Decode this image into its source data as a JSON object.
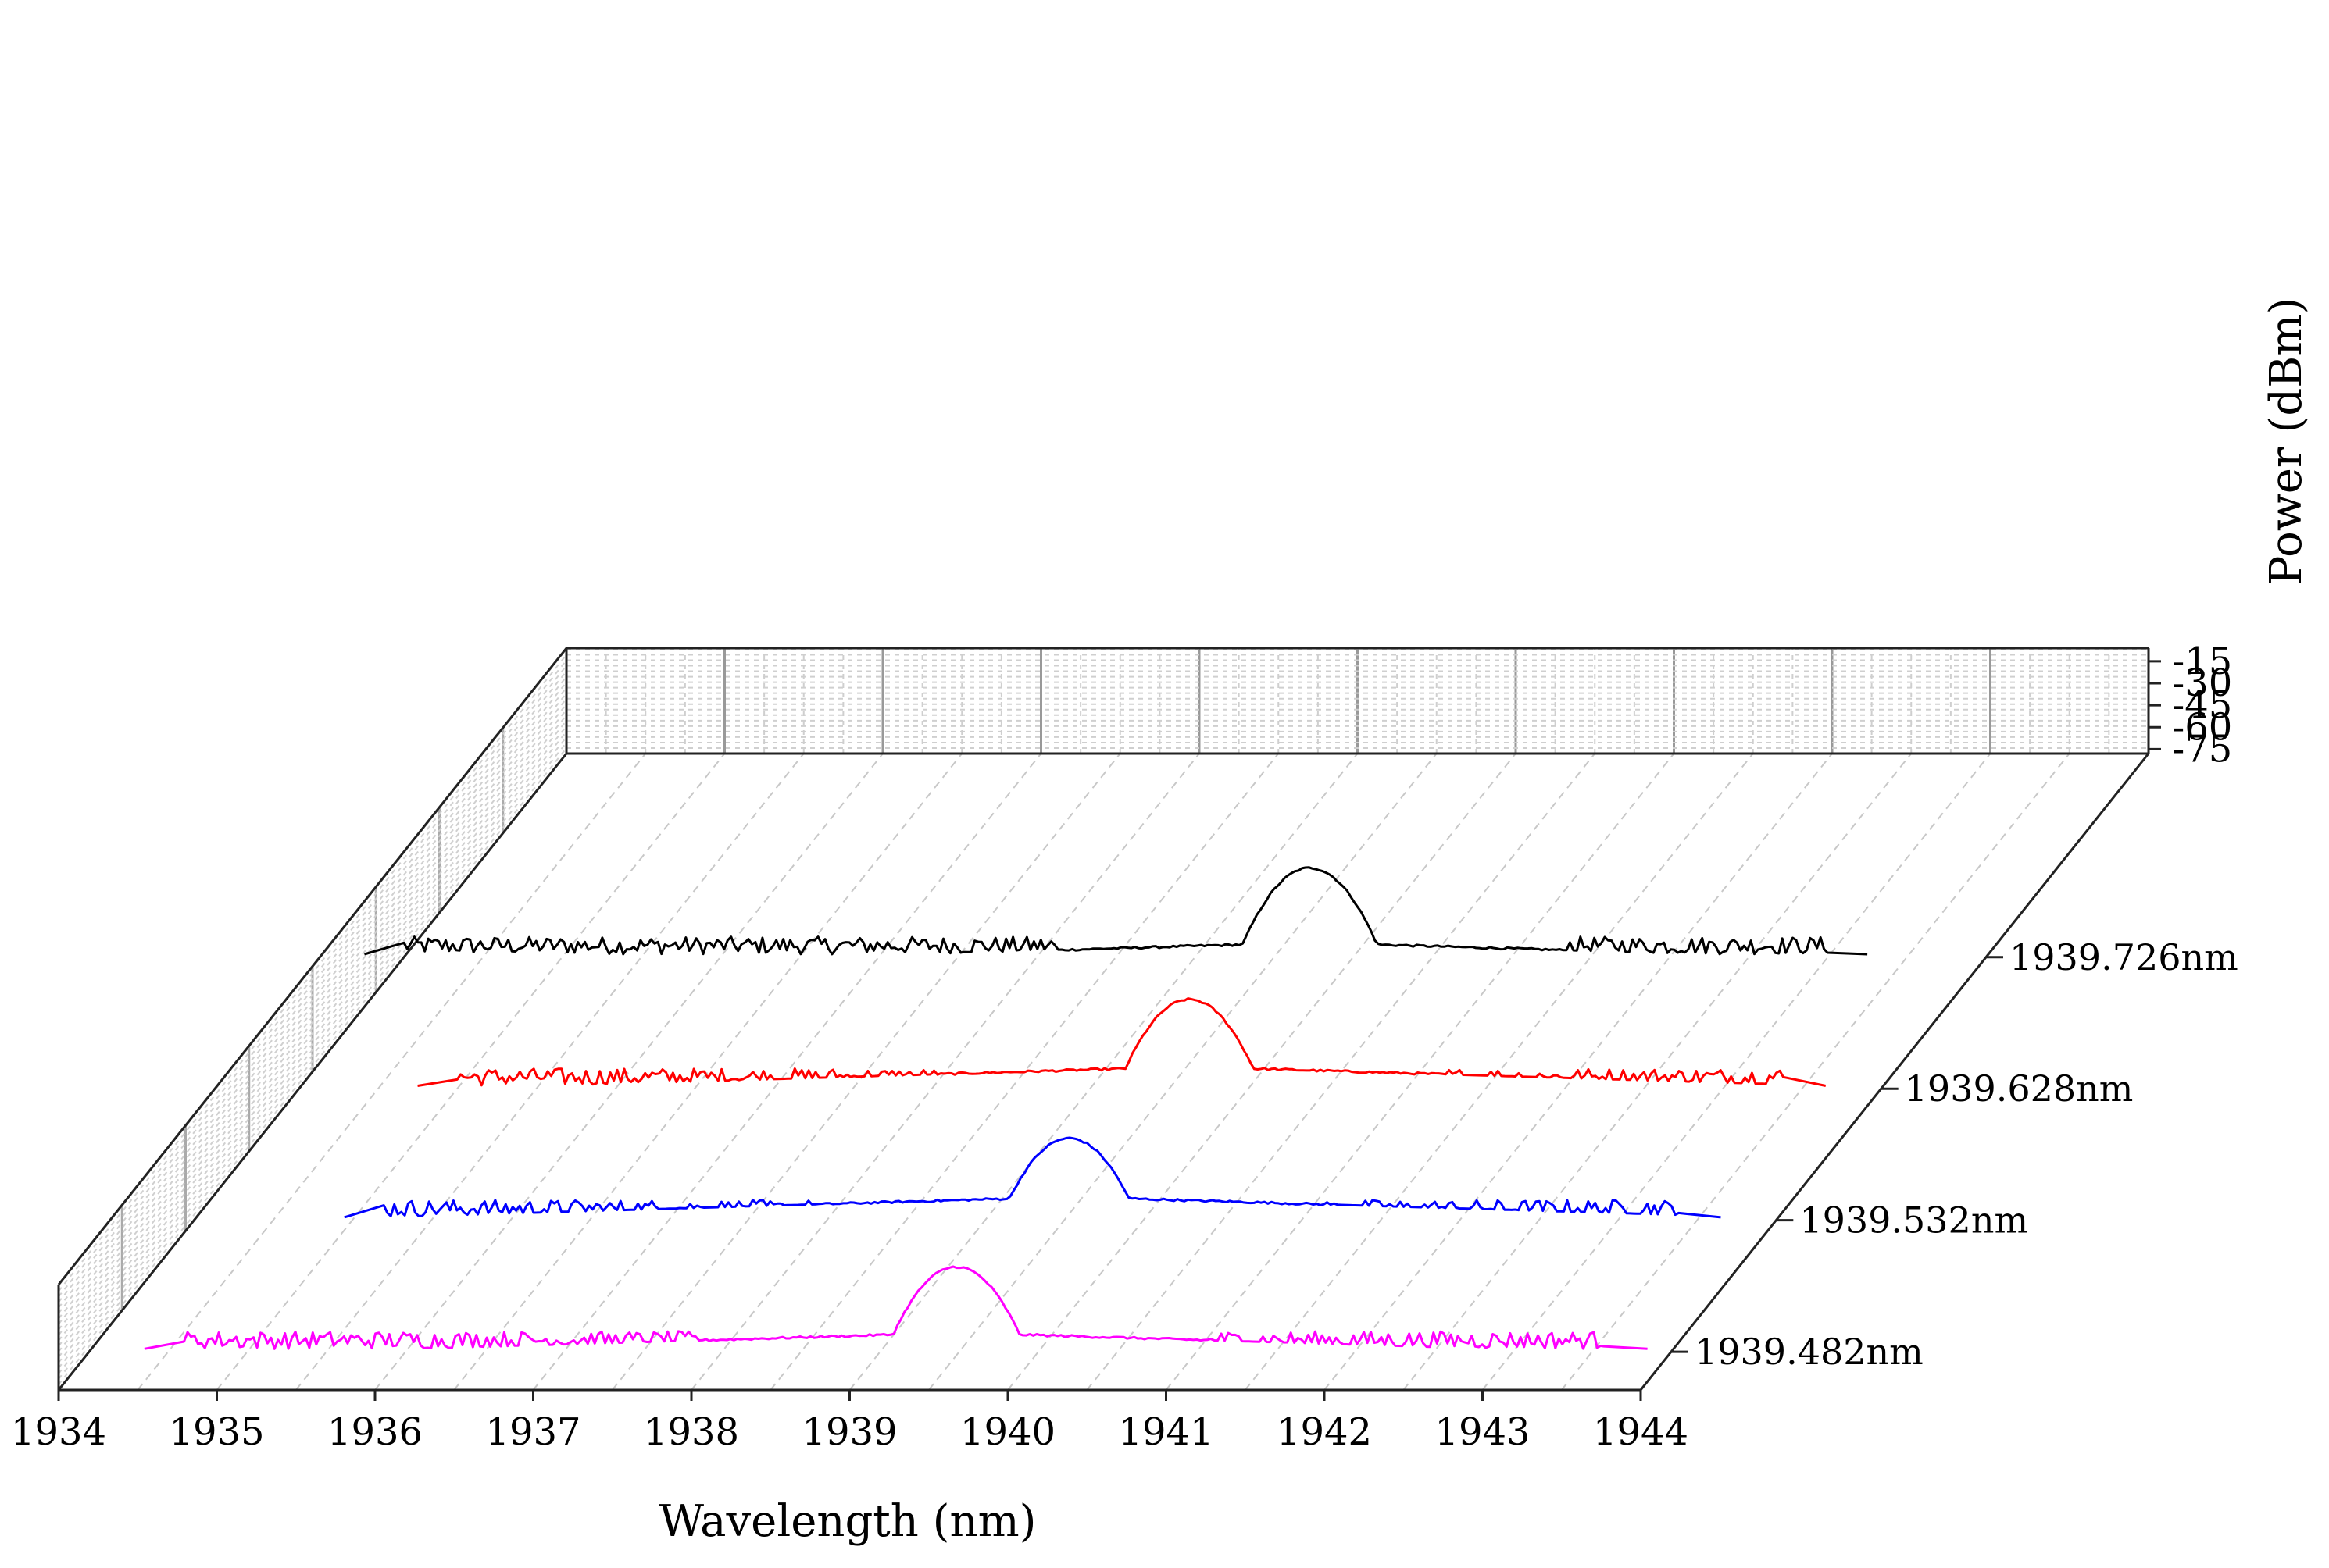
{
  "chart_data": {
    "type": "line",
    "subtype": "3d-waterfall",
    "title": "",
    "xlabel": "Wavelength (nm)",
    "ylabel": "Power (dBm)",
    "xlim": [
      1934,
      1944
    ],
    "ylim": [
      -78,
      -6
    ],
    "x_ticks": [
      "1934",
      "1935",
      "1936",
      "1937",
      "1938",
      "1939",
      "1940",
      "1941",
      "1942",
      "1943",
      "1944"
    ],
    "y_ticks": [
      "-15",
      "-30",
      "-45",
      "-60",
      "-75"
    ],
    "y_tick_values": [
      -15,
      -30,
      -45,
      -60,
      -75
    ],
    "grid": true,
    "series": [
      {
        "name": "1939.482nm",
        "label": "1939.482nm",
        "color": "#ff00ff",
        "peak_nm": 1939.482,
        "peak_dbm": -20,
        "floor_dbm": -76,
        "shoulder_dbm": -65,
        "noise_band_nm": [
          1934.6,
          1943.6
        ]
      },
      {
        "name": "1939.532nm",
        "label": "1939.532nm",
        "color": "#0000ff",
        "peak_nm": 1939.532,
        "peak_dbm": -22,
        "floor_dbm": -76,
        "shoulder_dbm": -62,
        "noise_band_nm": [
          1935.2,
          1943.4
        ]
      },
      {
        "name": "1939.628nm",
        "label": "1939.628nm",
        "color": "#ff0000",
        "peak_nm": 1939.628,
        "peak_dbm": -17,
        "floor_dbm": -76,
        "shoulder_dbm": -63,
        "noise_band_nm": [
          1935.0,
          1943.4
        ]
      },
      {
        "name": "1939.726nm",
        "label": "1939.726nm",
        "color": "#000000",
        "peak_nm": 1939.726,
        "peak_dbm": -17,
        "floor_dbm": -76,
        "shoulder_dbm": -68,
        "noise_band_nm": [
          1934.0,
          1943.0
        ]
      }
    ]
  }
}
